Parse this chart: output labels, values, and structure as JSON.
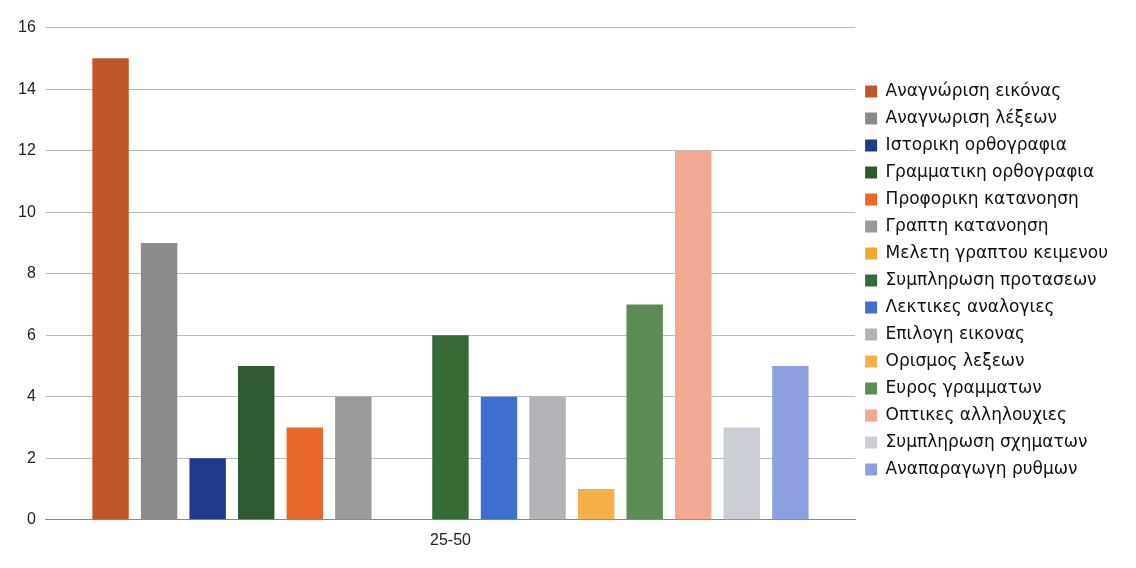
{
  "chart_data": {
    "type": "bar",
    "categories": [
      "25-50"
    ],
    "series": [
      {
        "name": "Αναγνώριση εικόνας",
        "color": "#c0562a",
        "values": [
          15
        ]
      },
      {
        "name": "Αναγνωριση λέξεων",
        "color": "#8a8a8a",
        "values": [
          9
        ]
      },
      {
        "name": "Ιστορικη ορθογραφια",
        "color": "#1f3a8a",
        "values": [
          2
        ]
      },
      {
        "name": "Γραμματικη ορθογραφια",
        "color": "#2f5a30",
        "values": [
          5
        ]
      },
      {
        "name": "Προφορικη κατανοηση",
        "color": "#e8672a",
        "values": [
          3
        ]
      },
      {
        "name": "Γραπτη κατανοηση",
        "color": "#9a9a9a",
        "values": [
          4
        ]
      },
      {
        "name": "Μελετη γραπτου κειμενου",
        "color": "#f2a634",
        "values": [
          0
        ]
      },
      {
        "name": "Συμπληρωση προτασεων",
        "color": "#356b36",
        "values": [
          6
        ]
      },
      {
        "name": "Λεκτικες αναλογιες",
        "color": "#3e6fcf",
        "values": [
          4
        ]
      },
      {
        "name": "Επιλογη εικονας",
        "color": "#b4b4b8",
        "values": [
          4
        ]
      },
      {
        "name": "Ορισμος λεξεων",
        "color": "#f6b04a",
        "values": [
          1
        ]
      },
      {
        "name": "Ευρος γραμματων",
        "color": "#5e8a55",
        "values": [
          7
        ]
      },
      {
        "name": "Οπτικες αλληλουχιες",
        "color": "#f2a893",
        "values": [
          12
        ]
      },
      {
        "name": "Συμπληρωση σχηματων",
        "color": "#ccced6",
        "values": [
          3
        ]
      },
      {
        "name": "Αναπαραγωγη ρυθμων",
        "color": "#8e9fdf",
        "values": [
          5
        ]
      }
    ],
    "ylim": [
      0,
      16
    ],
    "yticks": [
      0,
      2,
      4,
      6,
      8,
      10,
      12,
      14,
      16
    ],
    "grid": "y",
    "legend": "right"
  }
}
